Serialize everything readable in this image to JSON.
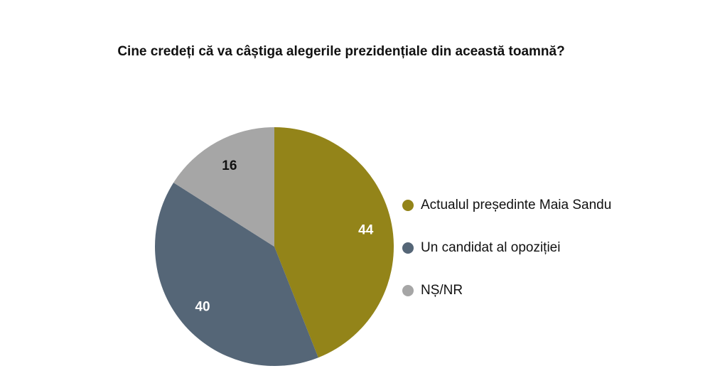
{
  "chart_data": {
    "type": "pie",
    "title": "Cine credeți că va câștiga alegerile prezidențiale din această toamnă?",
    "start_angle": "12 o'clock, clockwise",
    "slices": [
      {
        "label": "Actualul președinte Maia Sandu",
        "value": 44,
        "color": "#938419",
        "label_color": "#ffffff"
      },
      {
        "label": "Un candidat al opoziției",
        "value": 40,
        "color": "#556677",
        "label_color": "#ffffff"
      },
      {
        "label": "NȘ/NR",
        "value": 16,
        "color": "#a6a6a6",
        "label_color": "#111111"
      }
    ],
    "legend_position": "right"
  }
}
